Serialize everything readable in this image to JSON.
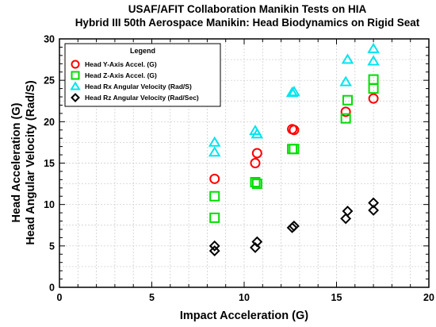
{
  "chart_data": {
    "type": "scatter",
    "title": "USAF/AFIT Collaboration Manikin Tests on HIA",
    "subtitle": "Hybrid III 50th Aerospace Manikin: Head Biodynamics on Rigid Seat",
    "xlabel": "Impact Acceleration  (G)",
    "ylabel_lines": [
      "Head Acceleration  (G)",
      "Head Angular Velocity  (Rad/S)"
    ],
    "xlim": [
      0,
      20
    ],
    "ylim": [
      0,
      30
    ],
    "xticks": [
      "0",
      "5",
      "10",
      "15",
      "20"
    ],
    "yticks": [
      "0",
      "5",
      "10",
      "15",
      "20",
      "25",
      "30"
    ],
    "grid": true,
    "legend": {
      "title": "Legend",
      "placement": "top-left"
    },
    "series": [
      {
        "name": "Head Y-Axis Accel.  (G)",
        "marker": "circle",
        "color": "#ff0000",
        "points": [
          [
            8.4,
            13.1
          ],
          [
            10.6,
            15.0
          ],
          [
            10.7,
            16.2
          ],
          [
            12.6,
            19.1
          ],
          [
            12.7,
            19.0
          ],
          [
            15.5,
            21.2
          ],
          [
            17.0,
            22.8
          ]
        ]
      },
      {
        "name": "Head Z-Axis Accel.  (G)",
        "marker": "square",
        "color": "#00dd00",
        "points": [
          [
            8.4,
            8.4
          ],
          [
            8.4,
            11.0
          ],
          [
            10.6,
            12.7
          ],
          [
            10.7,
            12.5
          ],
          [
            12.6,
            16.7
          ],
          [
            12.7,
            16.7
          ],
          [
            15.5,
            20.4
          ],
          [
            15.6,
            22.6
          ],
          [
            17.0,
            25.1
          ],
          [
            17.0,
            24.0
          ]
        ]
      },
      {
        "name": "Head Rx Angular Velocity  (Rad/S)",
        "marker": "triangle",
        "color": "#00e5ee",
        "points": [
          [
            8.4,
            17.5
          ],
          [
            8.4,
            16.3
          ],
          [
            10.6,
            18.9
          ],
          [
            10.7,
            18.5
          ],
          [
            12.6,
            23.5
          ],
          [
            12.7,
            23.6
          ],
          [
            15.5,
            24.8
          ],
          [
            15.6,
            27.5
          ],
          [
            17.0,
            28.8
          ],
          [
            17.0,
            27.3
          ]
        ]
      },
      {
        "name": "Head Rz Angular Velocity  (Rad/Sec)",
        "marker": "diamond",
        "color": "#000000",
        "points": [
          [
            8.4,
            5.0
          ],
          [
            8.4,
            4.4
          ],
          [
            10.6,
            4.8
          ],
          [
            10.7,
            5.5
          ],
          [
            12.6,
            7.2
          ],
          [
            12.7,
            7.4
          ],
          [
            15.5,
            8.3
          ],
          [
            15.6,
            9.2
          ],
          [
            17.0,
            9.3
          ],
          [
            17.0,
            10.2
          ]
        ]
      }
    ]
  }
}
